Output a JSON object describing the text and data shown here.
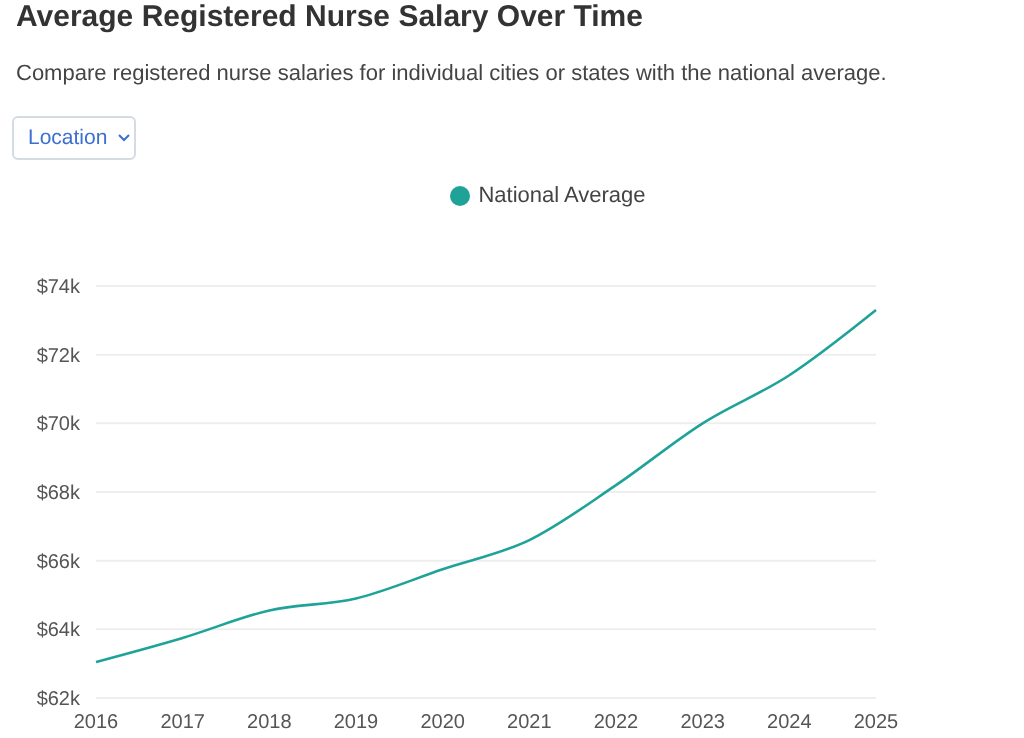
{
  "chart_data": {
    "type": "line",
    "title": "Average Registered Nurse Salary Over Time",
    "subtitle": "Compare registered nurse salaries for individual cities or states with the national average.",
    "annotations": [
      "Location"
    ],
    "categories": [
      "2016",
      "2017",
      "2018",
      "2019",
      "2020",
      "2021",
      "2022",
      "2023",
      "2024",
      "2025"
    ],
    "series": [
      {
        "name": "National Average",
        "color": "#1fa398",
        "values": [
          63050,
          63750,
          64550,
          64900,
          65750,
          66600,
          68200,
          70000,
          71400,
          73300
        ]
      }
    ],
    "ylim": [
      62000,
      74000
    ],
    "yticks": [
      {
        "value": 62000,
        "label": "$62k"
      },
      {
        "value": 64000,
        "label": "$64k"
      },
      {
        "value": 66000,
        "label": "$66k"
      },
      {
        "value": 68000,
        "label": "$68k"
      },
      {
        "value": 70000,
        "label": "$70k"
      },
      {
        "value": 72000,
        "label": "$72k"
      },
      {
        "value": 74000,
        "label": "$74k"
      }
    ],
    "grid": "y",
    "legend": "top",
    "marker": "none",
    "line_style": "solid"
  }
}
